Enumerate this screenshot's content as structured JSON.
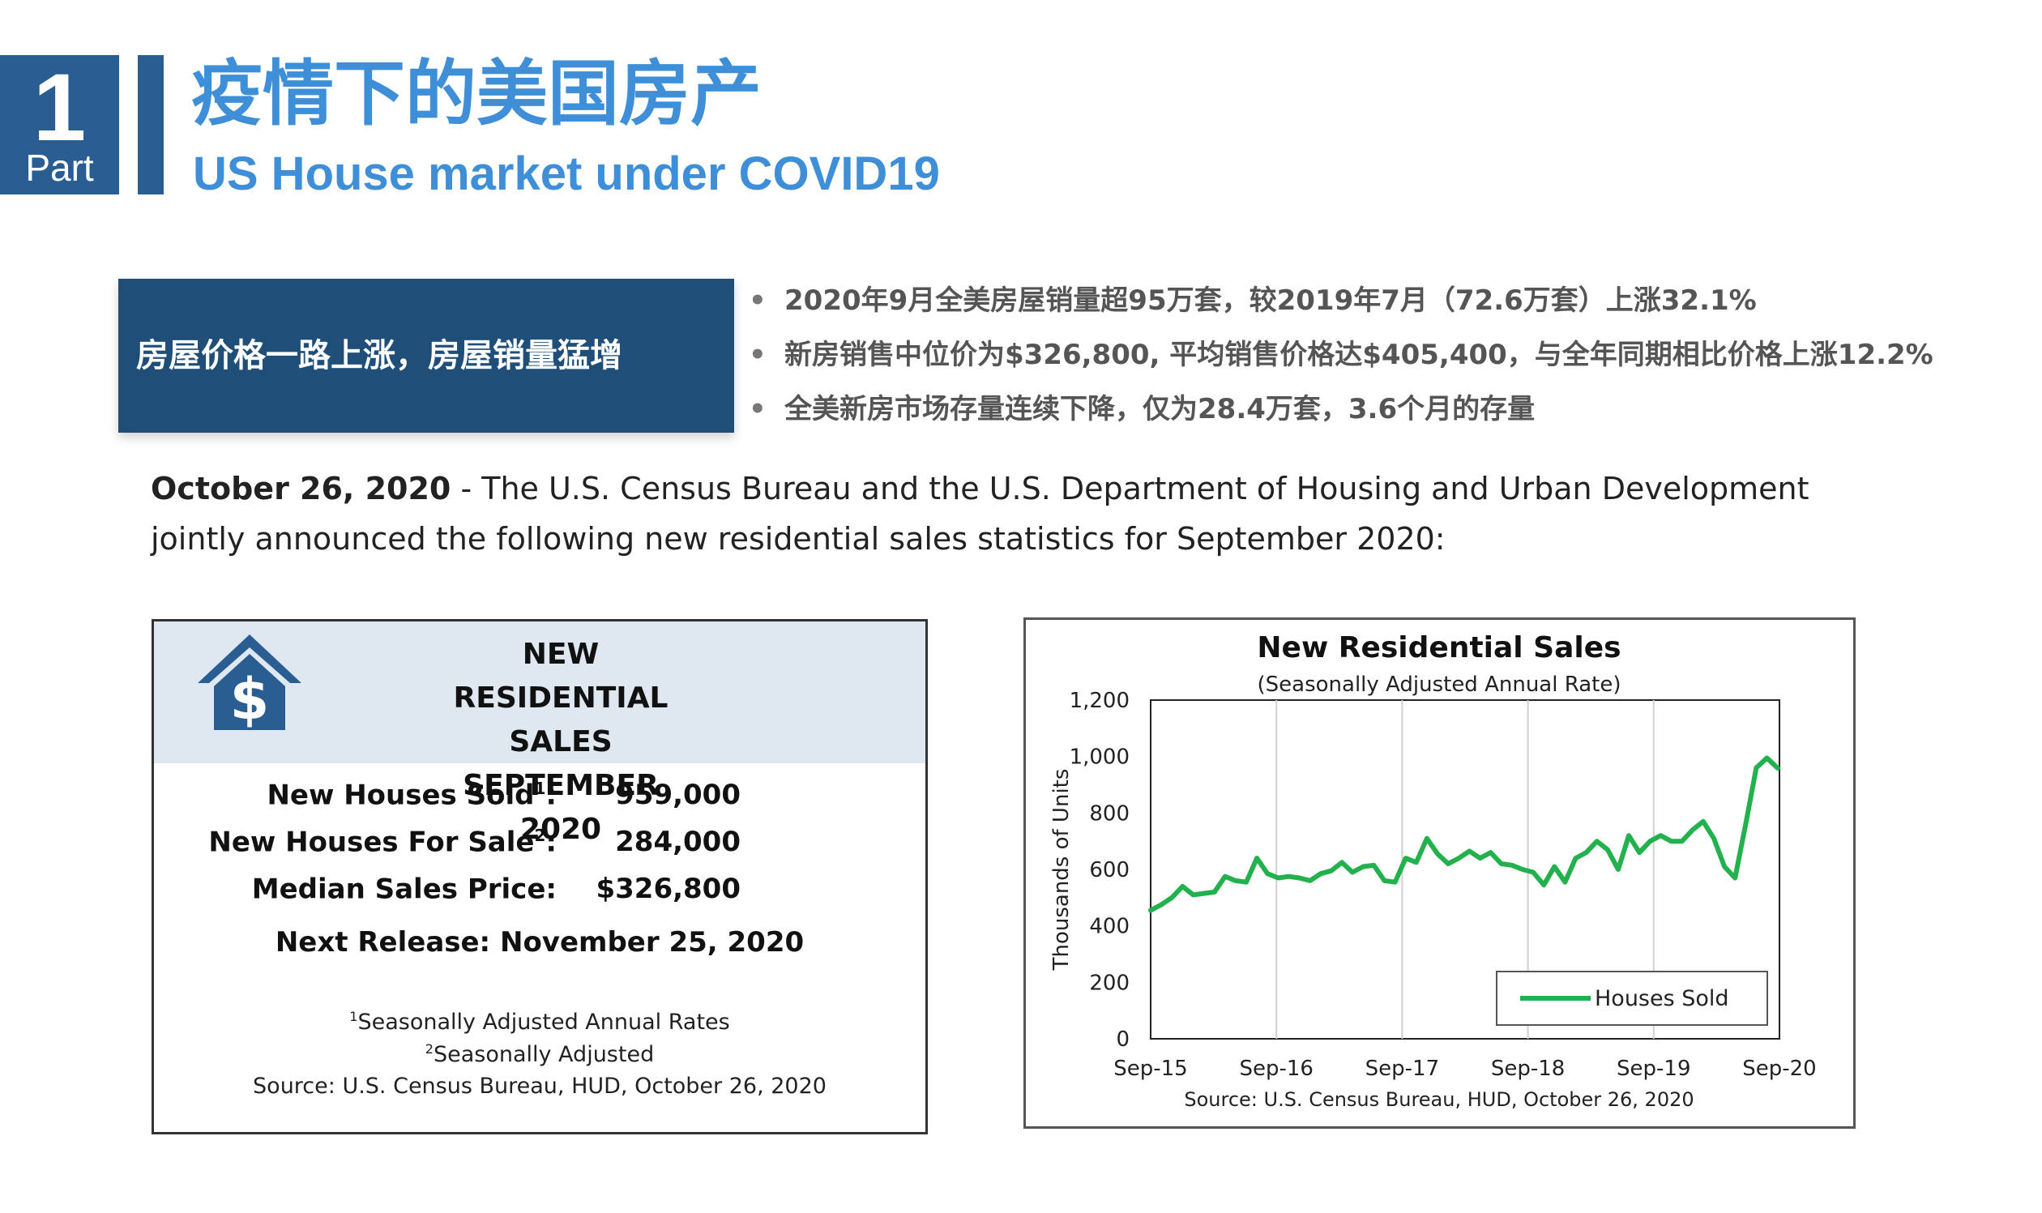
{
  "header": {
    "part_number": "1",
    "part_word": "Part",
    "title_cn": "疫情下的美国房产",
    "title_en": "US House market under COVID19"
  },
  "highlight": {
    "headline": "房屋价格一路上涨，房屋销量猛增",
    "bullets": [
      "2020年9月全美房屋销量超95万套，较2019年7月（72.6万套）上涨32.1%",
      "新房销售中位价为$326,800, 平均销售价格达$405,400，与全年同期相比价格上涨12.2%",
      "全美新房市场存量连续下降，仅为28.4万套，3.6个月的存量"
    ],
    "bullet_glyph": "•"
  },
  "intro": {
    "date": "October 26, 2020",
    "text": " - The U.S. Census Bureau and the U.S. Department of Housing and Urban Development jointly announced the following new residential sales statistics for September 2020:"
  },
  "summary_card": {
    "title_lines": [
      "NEW RESIDENTIAL",
      "SALES",
      "SEPTEMBER 2020"
    ],
    "icon": "house-dollar-icon",
    "icon_symbol": "$",
    "stats": [
      {
        "label": "New Houses Sold",
        "sup": "1",
        "suffix": ":",
        "value": "959,000"
      },
      {
        "label": "New Houses For Sale",
        "sup": "2",
        "suffix": ":",
        "value": "284,000"
      },
      {
        "label": "Median Sales Price",
        "sup": "",
        "suffix": ":",
        "value": "$326,800"
      }
    ],
    "next_release": "Next Release:  November 25, 2020",
    "footnotes": [
      {
        "sup": "1",
        "text": "Seasonally Adjusted Annual Rates"
      },
      {
        "sup": "2",
        "text": "Seasonally Adjusted"
      }
    ],
    "source": "Source:  U.S. Census Bureau, HUD, October 26, 2020"
  },
  "chart_data": {
    "type": "line",
    "title": "New Residential Sales",
    "subtitle": "(Seasonally Adjusted Annual Rate)",
    "ylabel": "Thousands of Units",
    "xlabel": "",
    "ylim": [
      0,
      1200
    ],
    "y_ticks": [
      "0",
      "200",
      "400",
      "600",
      "800",
      "1,000",
      "1,200"
    ],
    "x_ticks": [
      "Sep-15",
      "Sep-16",
      "Sep-17",
      "Sep-18",
      "Sep-19",
      "Sep-20"
    ],
    "grid": "vertical",
    "legend_position": "bottom-right",
    "source": "Source:  U.S. Census Bureau, HUD, October 26, 2020",
    "series": [
      {
        "name": "Houses Sold",
        "color": "#22b14c",
        "values": [
          455,
          475,
          500,
          540,
          510,
          515,
          520,
          575,
          560,
          555,
          640,
          585,
          570,
          575,
          570,
          560,
          585,
          595,
          625,
          590,
          610,
          615,
          560,
          555,
          640,
          625,
          710,
          655,
          620,
          640,
          665,
          640,
          660,
          620,
          615,
          600,
          590,
          545,
          610,
          555,
          640,
          660,
          700,
          670,
          600,
          720,
          660,
          700,
          720,
          700,
          700,
          740,
          770,
          710,
          610,
          570,
          760,
          960,
          995,
          959
        ]
      }
    ]
  }
}
